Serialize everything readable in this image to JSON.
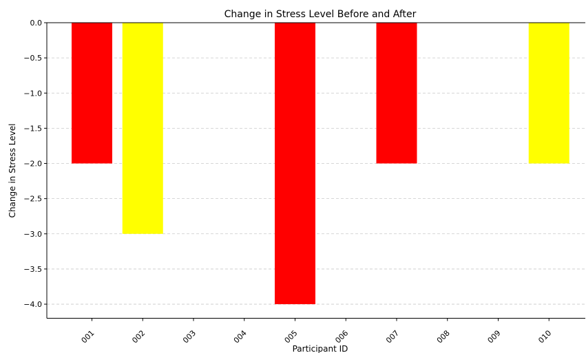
{
  "chart_data": {
    "type": "bar",
    "title": "Change in Stress Level Before and After",
    "xlabel": "Participant ID",
    "ylabel": "Change in Stress Level",
    "categories": [
      "001",
      "002",
      "003",
      "004",
      "005",
      "006",
      "007",
      "008",
      "009",
      "010"
    ],
    "values": [
      -2,
      -3,
      0,
      0,
      -4,
      0,
      -2,
      0,
      0,
      -2
    ],
    "bar_colors": [
      "#ff0000",
      "#ffff00",
      "#ff0000",
      "#ff0000",
      "#ff0000",
      "#ff0000",
      "#ff0000",
      "#ff0000",
      "#ff0000",
      "#ffff00"
    ],
    "ylim": [
      -4.2,
      0
    ],
    "yticks": [
      0.0,
      -0.5,
      -1.0,
      -1.5,
      -2.0,
      -2.5,
      -3.0,
      -3.5,
      -4.0
    ],
    "ytick_labels": [
      "0.0",
      "−0.5",
      "−1.0",
      "−1.5",
      "−2.0",
      "−2.5",
      "−3.0",
      "−3.5",
      "−4.0"
    ],
    "grid": "y-dashed",
    "legend": "none"
  }
}
